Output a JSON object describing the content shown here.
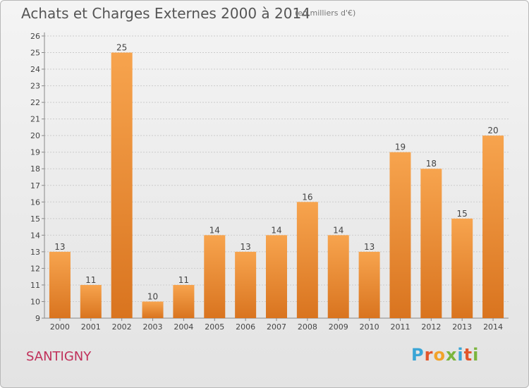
{
  "title": "Achats et Charges Externes 2000 à 2014",
  "subtitle": "(en milliers d'€)",
  "commune": "SANTIGNY",
  "logo": {
    "letters": [
      "P",
      "r",
      "o",
      "x",
      "i",
      "t",
      "i"
    ],
    "colors": [
      "#3aa5d6",
      "#e2562b",
      "#f2a32a",
      "#7bb53d",
      "#3aa5d6",
      "#e2562b",
      "#7bb53d"
    ]
  },
  "colors": {
    "bar_light": "#f7a44e",
    "bar_dark": "#d9741f",
    "grid": "#cccccc",
    "text": "#444444"
  },
  "chart_data": {
    "type": "bar",
    "title": "Achats et Charges Externes 2000 à 2014",
    "subtitle": "(en milliers d'€)",
    "categories": [
      "2000",
      "2001",
      "2002",
      "2003",
      "2004",
      "2005",
      "2006",
      "2007",
      "2008",
      "2009",
      "2010",
      "2011",
      "2012",
      "2013",
      "2014"
    ],
    "values": [
      13,
      11,
      25,
      10,
      11,
      14,
      13,
      14,
      16,
      14,
      13,
      19,
      18,
      15,
      20
    ],
    "data_labels": [
      "13",
      "11",
      "25",
      "10",
      "11",
      "14",
      "13",
      "14",
      "16",
      "14",
      "13",
      "19",
      "18",
      "15",
      "20"
    ],
    "ylim": [
      9,
      26
    ],
    "yticks": [
      "9",
      "10",
      "11",
      "12",
      "13",
      "14",
      "15",
      "16",
      "17",
      "18",
      "19",
      "20",
      "21",
      "22",
      "23",
      "24",
      "25",
      "26"
    ],
    "ytick_values": [
      9,
      10,
      11,
      12,
      13,
      14,
      15,
      16,
      17,
      18,
      19,
      20,
      21,
      22,
      23,
      24,
      25,
      26
    ],
    "grid": true,
    "xlabel": "",
    "ylabel": ""
  }
}
